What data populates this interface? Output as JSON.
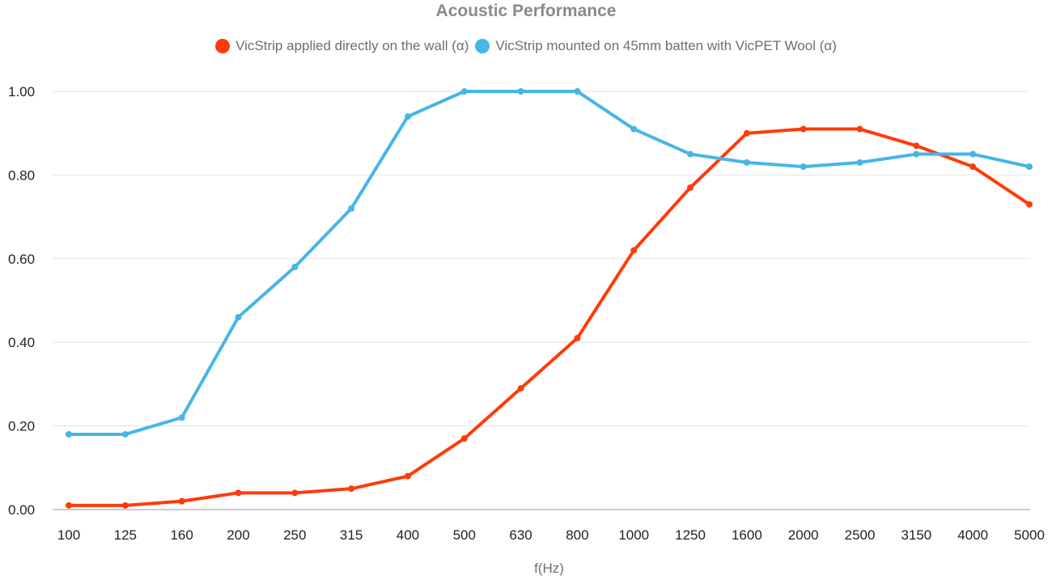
{
  "chart_data": {
    "type": "line",
    "title": "Acoustic Performance",
    "xlabel": "f(Hz)",
    "ylabel": "",
    "categories": [
      "100",
      "125",
      "160",
      "200",
      "250",
      "315",
      "400",
      "500",
      "630",
      "800",
      "1000",
      "1250",
      "1600",
      "2000",
      "2500",
      "3150",
      "4000",
      "5000"
    ],
    "ylim": [
      0,
      1
    ],
    "yticks": [
      "0.00",
      "0.20",
      "0.40",
      "0.60",
      "0.80",
      "1.00"
    ],
    "grid": true,
    "legend_position": "top",
    "series": [
      {
        "name": "VicStrip applied directly on the wall (α)",
        "color": "#ff3b0a",
        "values": [
          0.01,
          0.01,
          0.02,
          0.04,
          0.04,
          0.05,
          0.08,
          0.17,
          0.29,
          0.41,
          0.62,
          0.77,
          0.9,
          0.91,
          0.91,
          0.87,
          0.82,
          0.73
        ]
      },
      {
        "name": "VicStrip mounted on 45mm batten with VicPET Wool (α)",
        "color": "#45b6e6",
        "values": [
          0.18,
          0.18,
          0.22,
          0.46,
          0.58,
          0.72,
          0.94,
          1.0,
          1.0,
          1.0,
          0.91,
          0.85,
          0.83,
          0.82,
          0.83,
          0.85,
          0.85,
          0.82
        ]
      }
    ]
  }
}
